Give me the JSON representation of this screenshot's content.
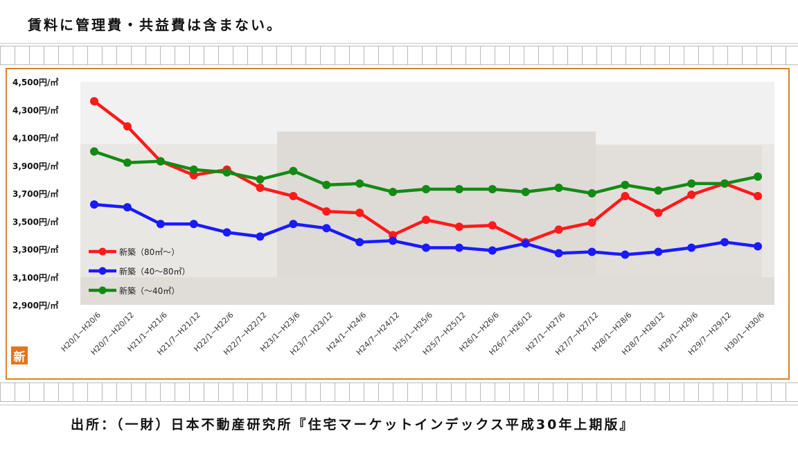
{
  "header": {
    "note": "賃料に管理費・共益費は含まない。"
  },
  "footer": {
    "source": "出所：（一財）日本不動産研究所『住宅マーケットインデックス平成30年上期版』"
  },
  "badge": {
    "label": "新"
  },
  "chart_data": {
    "type": "line",
    "title": "",
    "xlabel": "",
    "ylabel": "",
    "ylim": [
      2900,
      4500
    ],
    "yticks": [
      4500,
      4300,
      4100,
      3900,
      3700,
      3500,
      3300,
      3100,
      2900
    ],
    "ytick_labels": [
      "4,500円/㎡",
      "4,300円/㎡",
      "4,100円/㎡",
      "3,900円/㎡",
      "3,700円/㎡",
      "3,500円/㎡",
      "3,300円/㎡",
      "3,100円/㎡",
      "2,900円/㎡"
    ],
    "grid": false,
    "legend": "left",
    "categories": [
      "H20/1~H20/6",
      "H20/7~H20/12",
      "H21/1~H21/6",
      "H21/7~H21/12",
      "H22/1~H22/6",
      "H22/7~H22/12",
      "H23/1~H23/6",
      "H23/7~H23/12",
      "H24/1~H24/6",
      "H24/7~H24/12",
      "H25/1~H25/6",
      "H25/7~H25/12",
      "H26/1~H26/6",
      "H26/7~H26/12",
      "H27/1~H27/6",
      "H27/7~H27/12",
      "H28/1~H28/6",
      "H28/7~H28/12",
      "H29/1~H29/6",
      "H29/7~H29/12",
      "H30/1~H30/6"
    ],
    "series": [
      {
        "name": "新築（80㎡～）",
        "color": "#ff1a1a",
        "values": [
          4360,
          4180,
          3930,
          3830,
          3870,
          3740,
          3680,
          3570,
          3560,
          3400,
          3510,
          3460,
          3470,
          3350,
          3440,
          3490,
          3680,
          3560,
          3690,
          3770,
          3680
        ]
      },
      {
        "name": "新築（40～80㎡）",
        "color": "#1a1aff",
        "values": [
          3620,
          3600,
          3480,
          3480,
          3420,
          3390,
          3480,
          3450,
          3350,
          3360,
          3310,
          3310,
          3290,
          3340,
          3270,
          3280,
          3260,
          3280,
          3310,
          3350,
          3320
        ]
      },
      {
        "name": "新築（～40㎡）",
        "color": "#138a13",
        "values": [
          4000,
          3920,
          3930,
          3870,
          3850,
          3800,
          3860,
          3760,
          3770,
          3710,
          3730,
          3730,
          3730,
          3710,
          3740,
          3700,
          3760,
          3720,
          3770,
          3770,
          3820
        ]
      }
    ]
  }
}
